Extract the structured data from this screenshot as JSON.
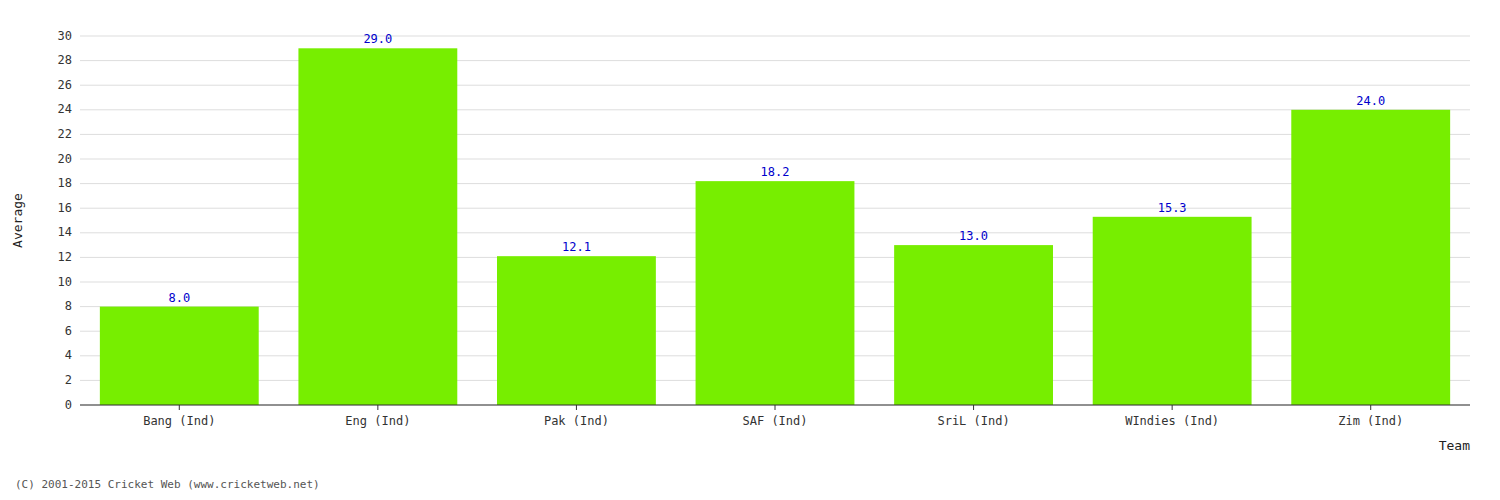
{
  "chart_data": {
    "type": "bar",
    "categories": [
      "Bang (Ind)",
      "Eng (Ind)",
      "Pak (Ind)",
      "SAF (Ind)",
      "SriL (Ind)",
      "WIndies (Ind)",
      "Zim (Ind)"
    ],
    "values": [
      8.0,
      29.0,
      12.1,
      18.2,
      13.0,
      15.3,
      24.0
    ],
    "value_labels": [
      "8.0",
      "29.0",
      "12.1",
      "18.2",
      "13.0",
      "15.3",
      "24.0"
    ],
    "color": "#77ee00",
    "xlabel": "Team",
    "ylabel": "Average",
    "ylim": [
      0,
      30
    ],
    "yticks": [
      0,
      2,
      4,
      6,
      8,
      10,
      12,
      14,
      16,
      18,
      20,
      22,
      24,
      26,
      28,
      30
    ],
    "grid": true,
    "data_labels": true,
    "annotations": [
      "(C) 2001-2015 Cricket Web (www.cricketweb.net)"
    ]
  }
}
